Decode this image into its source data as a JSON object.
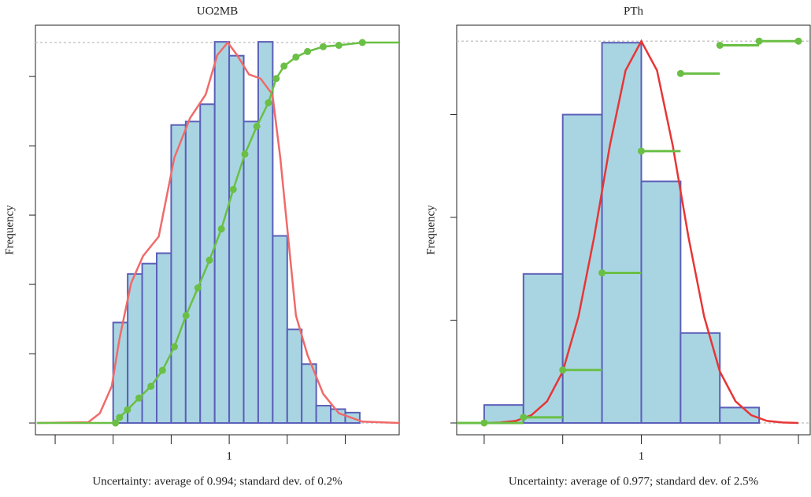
{
  "chart_data": [
    {
      "type": "histogram",
      "title": "UO2MB",
      "y_label": "Frequency",
      "x_label": "Uncertainty: average of 0.994; standard dev. of 0.2%",
      "bins": [
        0.996,
        0.9965,
        0.997,
        0.9975,
        0.998,
        0.9985,
        0.999,
        0.9995,
        1,
        1.0005,
        1.001,
        1.0015,
        1.002,
        1.0025,
        1.003,
        1.0035,
        1.004,
        1.0045
      ],
      "values": [
        14.5,
        21.5,
        23,
        24.5,
        43,
        43.5,
        46,
        55,
        53,
        43.5,
        55,
        27,
        13.5,
        8.5,
        2.5,
        2,
        1.5
      ],
      "bar_color": "#a9d5e3",
      "bar_edge": "#5b5fb8",
      "density": {
        "color": "#f06a6a",
        "x": [
          0.99338,
          0.99514,
          0.99554,
          0.99595,
          0.99622,
          0.99662,
          0.99703,
          0.99757,
          0.99811,
          0.99865,
          0.99919,
          0.99959,
          0.99995,
          1.00027,
          1.00068,
          1.00108,
          1.00149,
          1.00176,
          1.00203,
          1.0023,
          1.0027,
          1.00324,
          1.00378,
          1.00459,
          1.00586
        ],
        "values": [
          0,
          0.1,
          1.4,
          5.3,
          12.2,
          20.2,
          24.1,
          26.9,
          38.3,
          44,
          47.4,
          53.1,
          54.9,
          53.1,
          50.3,
          49.7,
          47.4,
          38.3,
          26.9,
          15.5,
          9.8,
          4.2,
          1.4,
          0.2,
          0
        ]
      },
      "ecdf": {
        "color": "#6abf45",
        "step": false,
        "x": [
          0.99338,
          0.99608,
          0.99622,
          0.99649,
          0.99689,
          0.9973,
          0.9977,
          0.99811,
          0.99851,
          0.99892,
          0.99932,
          0.99973,
          1.00014,
          1.00054,
          1.00095,
          1.00135,
          1.00162,
          1.00189,
          1.0023,
          1.0027,
          1.00324,
          1.00378,
          1.00459,
          1.00586
        ],
        "values": [
          0,
          0,
          0.8,
          1.9,
          3.6,
          5.3,
          7.6,
          11,
          15.5,
          19.5,
          23.5,
          28,
          33.7,
          38.8,
          42.8,
          46.2,
          49.7,
          51.5,
          52.8,
          53.6,
          54.3,
          54.5,
          54.9,
          54.9
        ]
      },
      "hlines": [
        0,
        54.9
      ],
      "hline_color": "#c8c8c8",
      "xlim": [
        0.99332,
        1.00586
      ],
      "ylim": [
        -1.7,
        57.4
      ],
      "xticks": [
        {
          "value": 0.994,
          "label": null
        },
        {
          "value": 0.996,
          "label": null
        },
        {
          "value": 0.998,
          "label": null
        },
        1,
        {
          "value": 1.002,
          "label": null
        },
        {
          "value": 1.004,
          "label": null
        }
      ],
      "yticks": [
        {
          "value": 0,
          "label": null
        },
        {
          "value": 10,
          "label": null
        },
        {
          "value": 20,
          "label": null
        },
        {
          "value": 30,
          "label": null
        },
        {
          "value": 40,
          "label": null
        },
        {
          "value": 50,
          "label": null
        }
      ]
    },
    {
      "type": "histogram",
      "title": "PTh",
      "y_label": "Frequency",
      "x_label": "Uncertainty: average of 0.977; standard dev. of 2.5%",
      "bins": [
        0.9,
        0.925,
        0.95,
        0.975,
        1,
        1.025,
        1.05,
        1.075
      ],
      "values": [
        0.35,
        2.9,
        6,
        7.4,
        4.7,
        1.75,
        0.3
      ],
      "bar_color": "#a9d5e3",
      "bar_edge": "#5b5fb8",
      "density": {
        "color": "#e83535",
        "x": [
          0.89,
          0.9,
          0.91,
          0.92,
          0.93,
          0.94,
          0.95,
          0.96,
          0.97,
          0.98,
          0.99,
          1,
          1.01,
          1.02,
          1.03,
          1.04,
          1.05,
          1.06,
          1.07,
          1.08,
          1.09,
          1.1
        ],
        "values": [
          0,
          0,
          0.01,
          0.04,
          0.15,
          0.42,
          1,
          2.07,
          3.62,
          5.4,
          6.86,
          7.43,
          6.86,
          5.4,
          3.62,
          2.07,
          1,
          0.42,
          0.15,
          0.04,
          0.01,
          0
        ]
      },
      "ecdf": {
        "color": "#6abf45",
        "step": true,
        "x": [
          0.9,
          0.925,
          0.95,
          0.975,
          1,
          1.025,
          1.05,
          1.075,
          1.1
        ],
        "values": [
          0,
          0.11,
          1.03,
          2.92,
          5.29,
          6.8,
          7.35,
          7.43,
          7.43
        ]
      },
      "hlines": [
        0,
        7.43
      ],
      "hline_color": "#c8c8c8",
      "xlim": [
        0.8825,
        1.1075
      ],
      "ylim": [
        -0.23,
        7.74
      ],
      "xticks": [
        {
          "value": 0.9,
          "label": null
        },
        {
          "value": 0.95,
          "label": null
        },
        1,
        {
          "value": 1.05,
          "label": null
        },
        {
          "value": 1.1,
          "label": null
        }
      ],
      "yticks": [
        {
          "value": 0,
          "label": null
        },
        {
          "value": 2,
          "label": null
        },
        {
          "value": 4,
          "label": null
        },
        {
          "value": 6,
          "label": null
        }
      ]
    }
  ]
}
